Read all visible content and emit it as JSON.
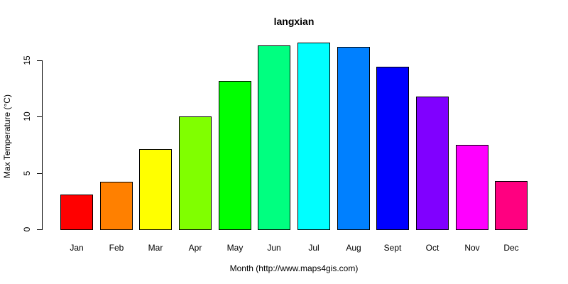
{
  "chart_data": {
    "type": "bar",
    "title": "langxian",
    "xlabel": "Month (http://www.maps4gis.com)",
    "ylabel": "Max Temperature (°C)",
    "categories": [
      "Jan",
      "Feb",
      "Mar",
      "Apr",
      "May",
      "Jun",
      "Jul",
      "Aug",
      "Sept",
      "Oct",
      "Nov",
      "Dec"
    ],
    "values": [
      3.1,
      4.2,
      7.1,
      10.0,
      13.2,
      16.3,
      16.6,
      16.2,
      14.4,
      11.8,
      7.5,
      4.3
    ],
    "colors": [
      "#FF0000",
      "#FF8000",
      "#FFFF00",
      "#80FF00",
      "#00FF00",
      "#00FF80",
      "#00FFFF",
      "#0080FF",
      "#0000FF",
      "#8000FF",
      "#FF00FF",
      "#FF0080"
    ],
    "yticks": [
      0,
      5,
      10,
      15
    ],
    "ylim": [
      0,
      16.6
    ],
    "grid": false,
    "legend": "none"
  }
}
